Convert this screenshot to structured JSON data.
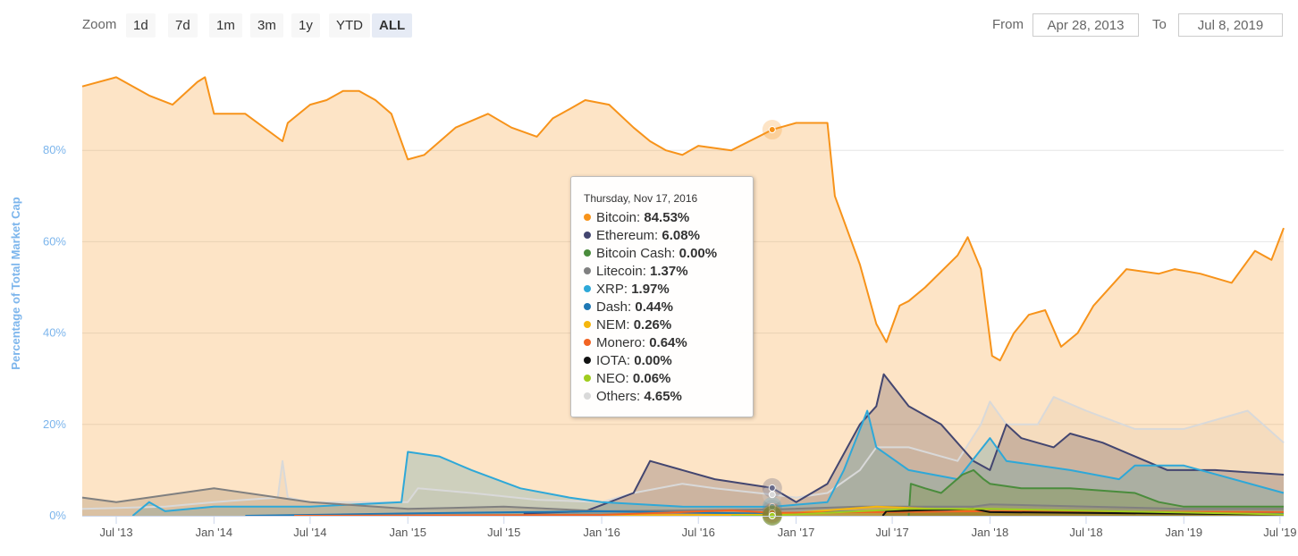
{
  "toolbar": {
    "zoom_label": "Zoom",
    "buttons": [
      {
        "label": "1d",
        "active": false
      },
      {
        "label": "7d",
        "active": false
      },
      {
        "label": "1m",
        "active": false
      },
      {
        "label": "3m",
        "active": false
      },
      {
        "label": "1y",
        "active": false
      },
      {
        "label": "YTD",
        "active": false
      },
      {
        "label": "ALL",
        "active": true
      }
    ],
    "from_label": "From",
    "from_value": "Apr 28, 2013",
    "to_label": "To",
    "to_value": "Jul 8, 2019"
  },
  "tooltip": {
    "date": "Thursday, Nov 17, 2016",
    "rows": [
      {
        "name": "Bitcoin",
        "value": "84.53%",
        "color": "#f7931a"
      },
      {
        "name": "Ethereum",
        "value": "6.08%",
        "color": "#434670"
      },
      {
        "name": "Bitcoin Cash",
        "value": "0.00%",
        "color": "#4a8c3c"
      },
      {
        "name": "Litecoin",
        "value": "1.37%",
        "color": "#808080"
      },
      {
        "name": "XRP",
        "value": "1.97%",
        "color": "#2ea8d8"
      },
      {
        "name": "Dash",
        "value": "0.44%",
        "color": "#1f78b4"
      },
      {
        "name": "NEM",
        "value": "0.26%",
        "color": "#f5b60d"
      },
      {
        "name": "Monero",
        "value": "0.64%",
        "color": "#f26322"
      },
      {
        "name": "IOTA",
        "value": "0.00%",
        "color": "#111111"
      },
      {
        "name": "NEO",
        "value": "0.06%",
        "color": "#a0cc1e"
      },
      {
        "name": "Others",
        "value": "4.65%",
        "color": "#d9d9d9"
      }
    ]
  },
  "chart_data": {
    "type": "area",
    "ylabel": "Percentage of Total Market Cap",
    "ylim": [
      0,
      100
    ],
    "yticks": [
      {
        "value": 0,
        "label": "0%"
      },
      {
        "value": 20,
        "label": "20%"
      },
      {
        "value": 40,
        "label": "40%"
      },
      {
        "value": 60,
        "label": "60%"
      },
      {
        "value": 80,
        "label": "80%"
      }
    ],
    "xlim": [
      "2013-04-28",
      "2019-07-08"
    ],
    "xticks": [
      {
        "date": "2013-07-01",
        "label": "Jul '13"
      },
      {
        "date": "2014-01-01",
        "label": "Jan '14"
      },
      {
        "date": "2014-07-01",
        "label": "Jul '14"
      },
      {
        "date": "2015-01-01",
        "label": "Jan '15"
      },
      {
        "date": "2015-07-01",
        "label": "Jul '15"
      },
      {
        "date": "2016-01-01",
        "label": "Jan '16"
      },
      {
        "date": "2016-07-01",
        "label": "Jul '16"
      },
      {
        "date": "2017-01-01",
        "label": "Jan '17"
      },
      {
        "date": "2017-07-01",
        "label": "Jul '17"
      },
      {
        "date": "2018-01-01",
        "label": "Jan '18"
      },
      {
        "date": "2018-07-01",
        "label": "Jul '18"
      },
      {
        "date": "2019-01-01",
        "label": "Jan '19"
      },
      {
        "date": "2019-07-01",
        "label": "Jul '19"
      }
    ],
    "grid": true,
    "legend": "none",
    "hover": {
      "date": "2016-11-17"
    },
    "series": [
      {
        "name": "Others",
        "color": "#d9d9d9",
        "points": [
          [
            "2013-04-28",
            1.5
          ],
          [
            "2013-10-01",
            2
          ],
          [
            "2014-01-01",
            3
          ],
          [
            "2014-05-01",
            4
          ],
          [
            "2014-05-10",
            12
          ],
          [
            "2014-05-20",
            4
          ],
          [
            "2014-07-01",
            3
          ],
          [
            "2015-01-01",
            3
          ],
          [
            "2015-01-20",
            6
          ],
          [
            "2015-05-01",
            5
          ],
          [
            "2015-09-01",
            3.5
          ],
          [
            "2016-01-01",
            3
          ],
          [
            "2016-03-01",
            5
          ],
          [
            "2016-06-01",
            7
          ],
          [
            "2016-08-01",
            6
          ],
          [
            "2016-11-17",
            4.65
          ],
          [
            "2017-01-01",
            4
          ],
          [
            "2017-03-01",
            5
          ],
          [
            "2017-05-01",
            10
          ],
          [
            "2017-06-01",
            15
          ],
          [
            "2017-08-01",
            15
          ],
          [
            "2017-11-01",
            12
          ],
          [
            "2017-12-15",
            20
          ],
          [
            "2018-01-01",
            25
          ],
          [
            "2018-02-01",
            20
          ],
          [
            "2018-04-01",
            20
          ],
          [
            "2018-05-01",
            26
          ],
          [
            "2018-07-01",
            23
          ],
          [
            "2018-10-01",
            19
          ],
          [
            "2019-01-01",
            19
          ],
          [
            "2019-05-01",
            23
          ],
          [
            "2019-07-08",
            16
          ]
        ]
      },
      {
        "name": "Ethereum",
        "color": "#434670",
        "points": [
          [
            "2015-08-07",
            0.5
          ],
          [
            "2015-12-01",
            1
          ],
          [
            "2016-03-01",
            5
          ],
          [
            "2016-04-01",
            12
          ],
          [
            "2016-06-01",
            10
          ],
          [
            "2016-08-01",
            8
          ],
          [
            "2016-11-17",
            6.08
          ],
          [
            "2017-01-01",
            3
          ],
          [
            "2017-03-01",
            7
          ],
          [
            "2017-05-01",
            20
          ],
          [
            "2017-06-01",
            24
          ],
          [
            "2017-06-15",
            31
          ],
          [
            "2017-08-01",
            24
          ],
          [
            "2017-10-01",
            20
          ],
          [
            "2017-12-01",
            12
          ],
          [
            "2018-01-01",
            10
          ],
          [
            "2018-02-01",
            20
          ],
          [
            "2018-03-01",
            17
          ],
          [
            "2018-05-01",
            15
          ],
          [
            "2018-06-01",
            18
          ],
          [
            "2018-08-01",
            16
          ],
          [
            "2018-10-01",
            13
          ],
          [
            "2018-12-01",
            10
          ],
          [
            "2019-03-01",
            10
          ],
          [
            "2019-07-08",
            9
          ]
        ]
      },
      {
        "name": "XRP",
        "color": "#2ea8d8",
        "points": [
          [
            "2013-08-01",
            0
          ],
          [
            "2013-09-01",
            3
          ],
          [
            "2013-10-01",
            1
          ],
          [
            "2014-01-01",
            2
          ],
          [
            "2014-07-01",
            2
          ],
          [
            "2014-12-20",
            3
          ],
          [
            "2015-01-01",
            14
          ],
          [
            "2015-03-01",
            13
          ],
          [
            "2015-05-01",
            10
          ],
          [
            "2015-08-01",
            6
          ],
          [
            "2015-11-01",
            4
          ],
          [
            "2016-01-01",
            3
          ],
          [
            "2016-06-01",
            2
          ],
          [
            "2016-11-17",
            1.97
          ],
          [
            "2017-03-01",
            3
          ],
          [
            "2017-04-01",
            10
          ],
          [
            "2017-05-15",
            23
          ],
          [
            "2017-06-01",
            15
          ],
          [
            "2017-08-01",
            10
          ],
          [
            "2017-11-01",
            8
          ],
          [
            "2018-01-01",
            17
          ],
          [
            "2018-02-01",
            12
          ],
          [
            "2018-06-01",
            10
          ],
          [
            "2018-09-01",
            8
          ],
          [
            "2018-10-01",
            11
          ],
          [
            "2019-01-01",
            11
          ],
          [
            "2019-07-08",
            5
          ]
        ]
      },
      {
        "name": "Bitcoin Cash",
        "color": "#4a8c3c",
        "points": [
          [
            "2017-08-01",
            0
          ],
          [
            "2017-08-05",
            7
          ],
          [
            "2017-09-01",
            6
          ],
          [
            "2017-10-01",
            5
          ],
          [
            "2017-11-10",
            9
          ],
          [
            "2017-12-01",
            10
          ],
          [
            "2017-12-20",
            8
          ],
          [
            "2018-01-01",
            7
          ],
          [
            "2018-03-01",
            6
          ],
          [
            "2018-06-01",
            6
          ],
          [
            "2018-10-01",
            5
          ],
          [
            "2018-11-15",
            3
          ],
          [
            "2019-01-01",
            2
          ],
          [
            "2019-07-08",
            2
          ]
        ]
      },
      {
        "name": "Litecoin",
        "color": "#808080",
        "points": [
          [
            "2013-04-28",
            4
          ],
          [
            "2013-07-01",
            3
          ],
          [
            "2014-01-01",
            6
          ],
          [
            "2014-07-01",
            3
          ],
          [
            "2015-01-01",
            1.5
          ],
          [
            "2015-07-01",
            2
          ],
          [
            "2016-01-01",
            1
          ],
          [
            "2016-11-17",
            1.37
          ],
          [
            "2017-05-01",
            2
          ],
          [
            "2017-12-01",
            2
          ],
          [
            "2018-01-01",
            2.5
          ],
          [
            "2019-01-01",
            1.5
          ],
          [
            "2019-07-08",
            1.5
          ]
        ]
      },
      {
        "name": "Dash",
        "color": "#1f78b4",
        "points": [
          [
            "2014-03-01",
            0
          ],
          [
            "2015-01-01",
            0.5
          ],
          [
            "2016-01-01",
            1
          ],
          [
            "2016-11-17",
            0.44
          ],
          [
            "2017-05-01",
            1
          ],
          [
            "2018-01-01",
            1
          ],
          [
            "2019-07-08",
            0.5
          ]
        ]
      },
      {
        "name": "NEM",
        "color": "#f5b60d",
        "points": [
          [
            "2015-04-01",
            0
          ],
          [
            "2016-01-01",
            0.1
          ],
          [
            "2016-11-17",
            0.26
          ],
          [
            "2017-06-01",
            2
          ],
          [
            "2018-01-01",
            1
          ],
          [
            "2019-07-08",
            0.3
          ]
        ]
      },
      {
        "name": "Monero",
        "color": "#f26322",
        "points": [
          [
            "2014-06-01",
            0
          ],
          [
            "2016-01-01",
            0.2
          ],
          [
            "2016-09-01",
            1.2
          ],
          [
            "2016-11-17",
            0.64
          ],
          [
            "2018-01-01",
            1
          ],
          [
            "2019-07-08",
            0.8
          ]
        ]
      },
      {
        "name": "IOTA",
        "color": "#111111",
        "points": [
          [
            "2017-06-13",
            0
          ],
          [
            "2017-06-20",
            1
          ],
          [
            "2017-12-01",
            1.5
          ],
          [
            "2018-01-01",
            0.8
          ],
          [
            "2019-07-08",
            0.3
          ]
        ]
      },
      {
        "name": "NEO",
        "color": "#a0cc1e",
        "points": [
          [
            "2016-09-01",
            0
          ],
          [
            "2016-11-17",
            0.06
          ],
          [
            "2017-08-01",
            1.5
          ],
          [
            "2018-01-01",
            1.5
          ],
          [
            "2019-07-08",
            0.3
          ]
        ]
      },
      {
        "name": "Bitcoin",
        "color": "#f7931a",
        "points": [
          [
            "2013-04-28",
            94
          ],
          [
            "2013-07-01",
            96
          ],
          [
            "2013-09-01",
            92
          ],
          [
            "2013-10-15",
            90
          ],
          [
            "2013-12-01",
            95
          ],
          [
            "2013-12-15",
            96
          ],
          [
            "2014-01-01",
            88
          ],
          [
            "2014-03-01",
            88
          ],
          [
            "2014-05-10",
            82
          ],
          [
            "2014-05-20",
            86
          ],
          [
            "2014-07-01",
            90
          ],
          [
            "2014-08-01",
            91
          ],
          [
            "2014-09-01",
            93
          ],
          [
            "2014-10-01",
            93
          ],
          [
            "2014-11-01",
            91
          ],
          [
            "2014-12-01",
            88
          ],
          [
            "2015-01-01",
            78
          ],
          [
            "2015-02-01",
            79
          ],
          [
            "2015-04-01",
            85
          ],
          [
            "2015-06-01",
            88
          ],
          [
            "2015-07-15",
            85
          ],
          [
            "2015-09-01",
            83
          ],
          [
            "2015-10-01",
            87
          ],
          [
            "2015-11-01",
            89
          ],
          [
            "2015-12-01",
            91
          ],
          [
            "2016-01-15",
            90
          ],
          [
            "2016-03-01",
            85
          ],
          [
            "2016-04-01",
            82
          ],
          [
            "2016-05-01",
            80
          ],
          [
            "2016-06-01",
            79
          ],
          [
            "2016-07-01",
            81
          ],
          [
            "2016-09-01",
            80
          ],
          [
            "2016-11-17",
            84.53
          ],
          [
            "2016-12-01",
            85
          ],
          [
            "2017-01-01",
            86
          ],
          [
            "2017-02-01",
            86
          ],
          [
            "2017-03-01",
            86
          ],
          [
            "2017-03-15",
            70
          ],
          [
            "2017-05-01",
            55
          ],
          [
            "2017-06-01",
            42
          ],
          [
            "2017-06-20",
            38
          ],
          [
            "2017-07-15",
            46
          ],
          [
            "2017-08-01",
            47
          ],
          [
            "2017-09-01",
            50
          ],
          [
            "2017-11-01",
            57
          ],
          [
            "2017-11-20",
            61
          ],
          [
            "2017-12-15",
            54
          ],
          [
            "2018-01-05",
            35
          ],
          [
            "2018-01-20",
            34
          ],
          [
            "2018-02-15",
            40
          ],
          [
            "2018-03-15",
            44
          ],
          [
            "2018-04-15",
            45
          ],
          [
            "2018-05-15",
            37
          ],
          [
            "2018-06-15",
            40
          ],
          [
            "2018-07-15",
            46
          ],
          [
            "2018-09-15",
            54
          ],
          [
            "2018-11-15",
            53
          ],
          [
            "2018-12-15",
            54
          ],
          [
            "2019-02-01",
            53
          ],
          [
            "2019-04-01",
            51
          ],
          [
            "2019-05-15",
            58
          ],
          [
            "2019-06-15",
            56
          ],
          [
            "2019-07-08",
            63
          ]
        ]
      }
    ]
  }
}
